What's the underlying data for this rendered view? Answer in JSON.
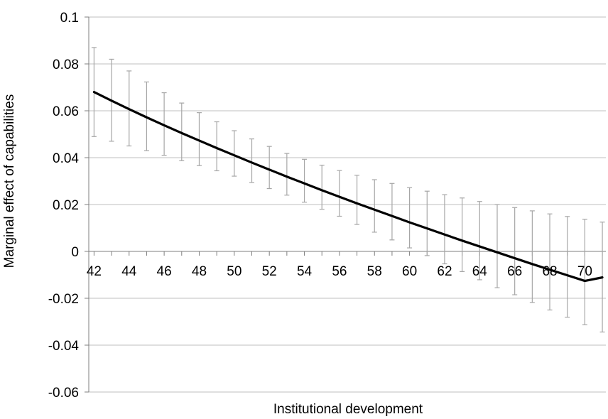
{
  "chart_data": {
    "type": "line",
    "title": "",
    "xlabel": "Institutional development",
    "ylabel": "Marginal effect of capabilities",
    "xlim": [
      41.7,
      71.2
    ],
    "ylim": [
      -0.06,
      0.1
    ],
    "x_ticks": [
      "42",
      "44",
      "46",
      "48",
      "50",
      "52",
      "54",
      "56",
      "58",
      "60",
      "62",
      "64",
      "66",
      "68",
      "70"
    ],
    "y_ticks": [
      "0.1",
      "0.08",
      "0.06",
      "0.04",
      "0.02",
      "0",
      "-0.02",
      "-0.04",
      "-0.06"
    ],
    "y_tick_values": [
      0.1,
      0.08,
      0.06,
      0.04,
      0.02,
      0,
      -0.02,
      -0.04,
      -0.06
    ],
    "grid": "horizontal",
    "legend": "none",
    "series": [
      {
        "x": [
          42,
          43,
          44,
          45,
          46,
          47,
          48,
          49,
          50,
          51,
          52,
          53,
          54,
          55,
          56,
          57,
          58,
          59,
          60,
          61,
          62,
          63,
          64,
          65,
          66,
          67,
          68,
          69,
          70,
          71
        ],
        "y": [
          0.068,
          0.0643,
          0.0607,
          0.0572,
          0.0538,
          0.0505,
          0.0473,
          0.0441,
          0.041,
          0.0379,
          0.0349,
          0.0319,
          0.029,
          0.0261,
          0.0233,
          0.0205,
          0.0178,
          0.0151,
          0.0124,
          0.0098,
          0.0072,
          0.0046,
          0.0021,
          -0.0004,
          -0.0029,
          -0.0054,
          -0.0078,
          -0.0102,
          -0.0126,
          -0.0111
        ],
        "lower": [
          0.049,
          0.047,
          0.045,
          0.043,
          0.041,
          0.0387,
          0.0366,
          0.0344,
          0.0321,
          0.0294,
          0.0268,
          0.024,
          0.021,
          0.018,
          0.015,
          0.0115,
          0.0082,
          0.0049,
          0.0015,
          -0.0018,
          -0.0053,
          -0.0086,
          -0.0121,
          -0.0155,
          -0.0185,
          -0.0218,
          -0.025,
          -0.0281,
          -0.0313,
          -0.0344
        ],
        "upper": [
          0.087,
          0.082,
          0.077,
          0.0723,
          0.0677,
          0.0633,
          0.0592,
          0.0553,
          0.0515,
          0.048,
          0.0448,
          0.0418,
          0.0393,
          0.0368,
          0.0345,
          0.0325,
          0.0306,
          0.029,
          0.0272,
          0.0257,
          0.0242,
          0.0228,
          0.0213,
          0.02,
          0.0187,
          0.0173,
          0.016,
          0.0149,
          0.0137,
          0.0125
        ],
        "color": "#000000"
      }
    ],
    "error_bar_color": "#a6a6a6",
    "gridline_color": "#bfbfbf",
    "axis_color": "#7f7f7f"
  }
}
